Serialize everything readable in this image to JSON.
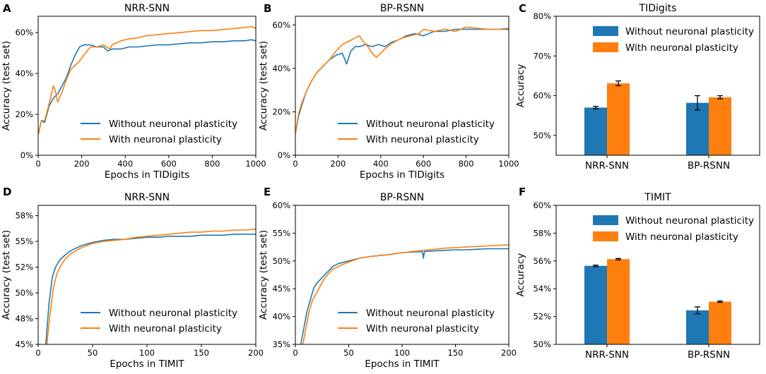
{
  "colors": {
    "without": "#1f77b4",
    "with": "#ff7f0e",
    "shade": "#9fd3cf"
  },
  "chart_data": [
    {
      "id": "A",
      "type": "line",
      "letter": "A",
      "title": "NRR-SNN",
      "xlabel": "Epochs in TIDigits",
      "ylabel": "Accuracy (test set)",
      "xlim": [
        0,
        1000
      ],
      "ylim": [
        0,
        0.68
      ],
      "xticks": [
        0,
        200,
        400,
        600,
        800,
        1000
      ],
      "xtick_labels": [
        "0",
        "200",
        "400",
        "600",
        "800",
        "1000"
      ],
      "yticks": [
        0,
        0.2,
        0.4,
        0.6
      ],
      "ytick_labels": [
        "0%",
        "20%",
        "40%",
        "60%"
      ],
      "legend": [
        "Without neuronal plasticity",
        "With neuronal plasticity"
      ],
      "series": [
        {
          "name": "Without neuronal plasticity",
          "color_key": "without",
          "x": [
            0,
            15,
            30,
            50,
            70,
            90,
            110,
            130,
            150,
            170,
            190,
            210,
            240,
            270,
            300,
            320,
            340,
            380,
            420,
            460,
            500,
            550,
            600,
            650,
            700,
            750,
            800,
            850,
            900,
            950,
            980,
            1000
          ],
          "y": [
            0.1,
            0.17,
            0.16,
            0.24,
            0.28,
            0.3,
            0.34,
            0.38,
            0.44,
            0.49,
            0.53,
            0.54,
            0.54,
            0.53,
            0.53,
            0.51,
            0.52,
            0.52,
            0.53,
            0.53,
            0.535,
            0.54,
            0.54,
            0.545,
            0.55,
            0.55,
            0.555,
            0.555,
            0.56,
            0.56,
            0.565,
            0.56
          ]
        },
        {
          "name": "With neuronal plasticity",
          "color_key": "with",
          "x": [
            0,
            15,
            30,
            50,
            70,
            80,
            90,
            110,
            130,
            150,
            170,
            190,
            210,
            240,
            270,
            300,
            330,
            340,
            380,
            420,
            460,
            500,
            550,
            600,
            650,
            700,
            750,
            800,
            850,
            900,
            950,
            980,
            1000
          ],
          "y": [
            0.1,
            0.17,
            0.17,
            0.25,
            0.34,
            0.31,
            0.26,
            0.31,
            0.37,
            0.42,
            0.44,
            0.46,
            0.49,
            0.53,
            0.53,
            0.54,
            0.52,
            0.54,
            0.56,
            0.57,
            0.575,
            0.585,
            0.59,
            0.595,
            0.6,
            0.605,
            0.61,
            0.61,
            0.615,
            0.62,
            0.625,
            0.63,
            0.62
          ]
        }
      ]
    },
    {
      "id": "B",
      "type": "line",
      "letter": "B",
      "title": "BP-RSNN",
      "xlabel": "Epochs in TIDigits",
      "ylabel": "Accuracy (test set)",
      "xlim": [
        0,
        1000
      ],
      "ylim": [
        0,
        0.64
      ],
      "xticks": [
        0,
        200,
        400,
        600,
        800,
        1000
      ],
      "xtick_labels": [
        "0",
        "200",
        "400",
        "600",
        "800",
        "1000"
      ],
      "yticks": [
        0,
        0.2,
        0.4,
        0.6
      ],
      "ytick_labels": [
        "0%",
        "20%",
        "40%",
        "60%"
      ],
      "legend": [
        "Without neuronal plasticity",
        "With neuronal plasticity"
      ],
      "series": [
        {
          "name": "Without neuronal plasticity",
          "color_key": "without",
          "x": [
            0,
            15,
            30,
            50,
            75,
            100,
            130,
            160,
            190,
            220,
            240,
            260,
            280,
            300,
            330,
            360,
            390,
            420,
            450,
            480,
            520,
            560,
            600,
            650,
            700,
            750,
            800,
            850,
            900,
            950,
            1000
          ],
          "y": [
            0.1,
            0.18,
            0.23,
            0.29,
            0.34,
            0.38,
            0.41,
            0.44,
            0.46,
            0.47,
            0.42,
            0.48,
            0.5,
            0.5,
            0.51,
            0.5,
            0.51,
            0.5,
            0.52,
            0.53,
            0.55,
            0.56,
            0.55,
            0.57,
            0.57,
            0.58,
            0.58,
            0.58,
            0.58,
            0.58,
            0.58
          ]
        },
        {
          "name": "With neuronal plasticity",
          "color_key": "with",
          "x": [
            0,
            15,
            30,
            50,
            75,
            100,
            130,
            160,
            190,
            220,
            260,
            300,
            320,
            340,
            360,
            380,
            420,
            460,
            500,
            540,
            580,
            600,
            650,
            700,
            750,
            800,
            850,
            900,
            950,
            1000
          ],
          "y": [
            0.1,
            0.19,
            0.24,
            0.29,
            0.34,
            0.38,
            0.41,
            0.44,
            0.48,
            0.51,
            0.53,
            0.55,
            0.52,
            0.5,
            0.47,
            0.45,
            0.49,
            0.52,
            0.54,
            0.55,
            0.56,
            0.58,
            0.57,
            0.58,
            0.57,
            0.59,
            0.585,
            0.58,
            0.58,
            0.585
          ]
        }
      ]
    },
    {
      "id": "C",
      "type": "bar",
      "letter": "C",
      "title": "TIDigits",
      "xlabel": "",
      "ylabel": "Accuracy",
      "categories": [
        "NRR-SNN",
        "BP-RSNN"
      ],
      "ylim": [
        0.45,
        0.8
      ],
      "yticks": [
        0.5,
        0.6,
        0.7,
        0.8
      ],
      "ytick_labels": [
        "50%",
        "60%",
        "70%",
        "80%"
      ],
      "legend": [
        "Without neuronal plasticity",
        "With neuronal plasticity"
      ],
      "series": [
        {
          "name": "Without neuronal plasticity",
          "color_key": "without",
          "values": [
            0.57,
            0.582
          ],
          "errors": [
            0.003,
            0.018
          ]
        },
        {
          "name": "With neuronal plasticity",
          "color_key": "with",
          "values": [
            0.631,
            0.596
          ],
          "errors": [
            0.006,
            0.004
          ]
        }
      ]
    },
    {
      "id": "D",
      "type": "line",
      "letter": "D",
      "title": "NRR-SNN",
      "xlabel": "Epochs in TIMIT",
      "ylabel": "Accuracy (test set)",
      "xlim": [
        0,
        200
      ],
      "ylim": [
        0.45,
        0.585
      ],
      "xticks": [
        0,
        50,
        100,
        150,
        200
      ],
      "xtick_labels": [
        "0",
        "50",
        "100",
        "150",
        "200"
      ],
      "yticks": [
        0.45,
        0.475,
        0.5,
        0.525,
        0.55,
        0.575
      ],
      "ytick_labels": [
        "45%",
        "48%",
        "50%",
        "52%",
        "55%",
        "58%"
      ],
      "legend": [
        "Without neuronal plasticity",
        "With neuronal plasticity"
      ],
      "series": [
        {
          "name": "Without neuronal plasticity",
          "color_key": "without",
          "x": [
            7,
            10,
            13,
            16,
            20,
            25,
            30,
            40,
            50,
            60,
            70,
            80,
            90,
            100,
            110,
            120,
            130,
            140,
            150,
            160,
            170,
            180,
            190,
            200
          ],
          "y": [
            0.45,
            0.49,
            0.515,
            0.525,
            0.532,
            0.537,
            0.541,
            0.546,
            0.549,
            0.551,
            0.552,
            0.552,
            0.553,
            0.554,
            0.554,
            0.555,
            0.555,
            0.555,
            0.556,
            0.556,
            0.556,
            0.557,
            0.557,
            0.557
          ]
        },
        {
          "name": "With neuronal plasticity",
          "color_key": "with",
          "x": [
            8,
            11,
            14,
            17,
            21,
            25,
            30,
            40,
            50,
            60,
            70,
            80,
            90,
            100,
            110,
            120,
            130,
            140,
            150,
            160,
            170,
            180,
            190,
            200
          ],
          "y": [
            0.45,
            0.48,
            0.505,
            0.518,
            0.527,
            0.533,
            0.538,
            0.544,
            0.548,
            0.55,
            0.551,
            0.552,
            0.554,
            0.555,
            0.556,
            0.557,
            0.558,
            0.559,
            0.559,
            0.56,
            0.56,
            0.561,
            0.561,
            0.562
          ]
        }
      ]
    },
    {
      "id": "E",
      "type": "line",
      "letter": "E",
      "title": "BP-RSNN",
      "xlabel": "Epochs in TIMIT",
      "ylabel": "Accuracy (test set)",
      "xlim": [
        0,
        200
      ],
      "ylim": [
        0.35,
        0.6
      ],
      "xticks": [
        0,
        50,
        100,
        150,
        200
      ],
      "xtick_labels": [
        "0",
        "50",
        "100",
        "150",
        "200"
      ],
      "yticks": [
        0.35,
        0.4,
        0.45,
        0.5,
        0.55,
        0.6
      ],
      "ytick_labels": [
        "35%",
        "40%",
        "45%",
        "50%",
        "55%",
        "60%"
      ],
      "legend": [
        "Without neuronal plasticity",
        "With neuronal plasticity"
      ],
      "series": [
        {
          "name": "Without neuronal plasticity",
          "color_key": "without",
          "x": [
            5,
            8,
            11,
            14,
            17,
            20,
            25,
            30,
            35,
            40,
            50,
            60,
            70,
            80,
            90,
            100,
            110,
            119,
            120,
            121,
            130,
            140,
            150,
            160,
            170,
            180,
            190,
            200
          ],
          "y": [
            0.35,
            0.38,
            0.41,
            0.43,
            0.45,
            0.46,
            0.47,
            0.48,
            0.49,
            0.495,
            0.5,
            0.505,
            0.508,
            0.51,
            0.512,
            0.515,
            0.516,
            0.517,
            0.505,
            0.517,
            0.518,
            0.519,
            0.52,
            0.52,
            0.521,
            0.522,
            0.522,
            0.522
          ]
        },
        {
          "name": "With neuronal plasticity",
          "color_key": "with",
          "x": [
            7,
            10,
            13,
            16,
            19,
            22,
            26,
            30,
            35,
            40,
            50,
            60,
            70,
            80,
            90,
            100,
            110,
            120,
            130,
            140,
            150,
            160,
            170,
            180,
            190,
            200
          ],
          "y": [
            0.35,
            0.38,
            0.41,
            0.43,
            0.44,
            0.45,
            0.465,
            0.475,
            0.485,
            0.49,
            0.498,
            0.505,
            0.508,
            0.51,
            0.512,
            0.515,
            0.517,
            0.519,
            0.521,
            0.523,
            0.524,
            0.525,
            0.526,
            0.527,
            0.528,
            0.529
          ]
        }
      ]
    },
    {
      "id": "F",
      "type": "bar",
      "letter": "F",
      "title": "TIMIT",
      "xlabel": "",
      "ylabel": "Accuracy",
      "categories": [
        "NRR-SNN",
        "BP-RSNN"
      ],
      "ylim": [
        0.5,
        0.6
      ],
      "yticks": [
        0.5,
        0.52,
        0.54,
        0.56,
        0.58,
        0.6
      ],
      "ytick_labels": [
        "50%",
        "52%",
        "54%",
        "56%",
        "58%",
        "60%"
      ],
      "legend": [
        "Without neuronal plasticity",
        "With neuronal plasticity"
      ],
      "series": [
        {
          "name": "Without neuronal plasticity",
          "color_key": "without",
          "values": [
            0.5565,
            0.5245
          ],
          "errors": [
            0.0005,
            0.0025
          ]
        },
        {
          "name": "With neuronal plasticity",
          "color_key": "with",
          "values": [
            0.5613,
            0.5307
          ],
          "errors": [
            0.0005,
            0.0005
          ]
        }
      ]
    }
  ]
}
